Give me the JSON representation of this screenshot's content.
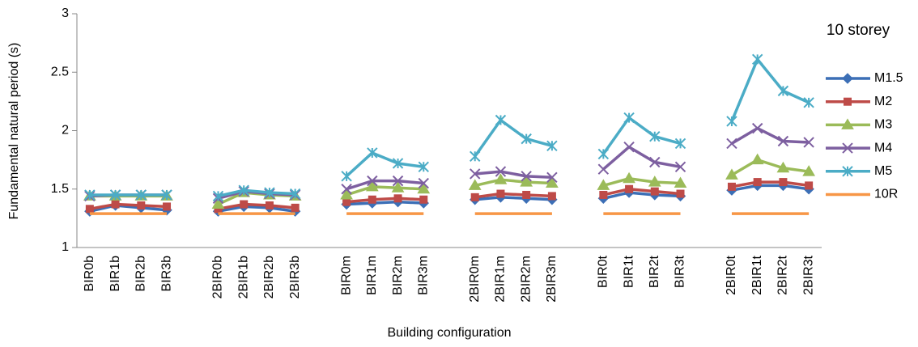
{
  "chart_data": {
    "type": "line",
    "annotation": "10 storey",
    "x_label": "Building configuration",
    "y_label": "Fundamental natural period (s)",
    "categories": [
      "BIR0b",
      "BIR1b",
      "BIR2b",
      "BIR3b",
      null,
      "2BIR0b",
      "2BIR1b",
      "2BIR2b",
      "2BIR3b",
      null,
      "BIR0m",
      "BIR1m",
      "BIR2m",
      "BIR3m",
      null,
      "2BIR0m",
      "2BIR1m",
      "2BIR2m",
      "2BIR3m",
      null,
      "BIR0t",
      "BIR1t",
      "BIR2t",
      "BIR3t",
      null,
      "2BIR0t",
      "2BIR1t",
      "2BIR2t",
      "2BIR3t"
    ],
    "ylim": [
      1,
      3
    ],
    "yticks": [
      1,
      1.5,
      2,
      2.5,
      3
    ],
    "legend": "right",
    "series": [
      {
        "name": "M1.5",
        "color": "#3c6fb6",
        "marker": "diamond",
        "values": [
          1.31,
          1.36,
          1.34,
          1.32,
          null,
          1.31,
          1.35,
          1.34,
          1.31,
          null,
          1.37,
          1.38,
          1.39,
          1.38,
          null,
          1.41,
          1.43,
          1.42,
          1.41,
          null,
          1.42,
          1.47,
          1.45,
          1.44,
          null,
          1.49,
          1.53,
          1.53,
          1.5
        ]
      },
      {
        "name": "M2",
        "color": "#be4b48",
        "marker": "square",
        "values": [
          1.33,
          1.37,
          1.36,
          1.35,
          null,
          1.33,
          1.37,
          1.36,
          1.34,
          null,
          1.39,
          1.41,
          1.42,
          1.41,
          null,
          1.43,
          1.46,
          1.45,
          1.44,
          null,
          1.45,
          1.5,
          1.48,
          1.46,
          null,
          1.52,
          1.56,
          1.56,
          1.53
        ]
      },
      {
        "name": "M3",
        "color": "#9bbb59",
        "marker": "triangle",
        "values": [
          1.44,
          1.44,
          1.44,
          1.44,
          null,
          1.37,
          1.47,
          1.45,
          1.44,
          null,
          1.45,
          1.52,
          1.51,
          1.5,
          null,
          1.53,
          1.58,
          1.56,
          1.55,
          null,
          1.53,
          1.59,
          1.56,
          1.55,
          null,
          1.62,
          1.75,
          1.68,
          1.65
        ]
      },
      {
        "name": "M4",
        "color": "#7d5fa0",
        "marker": "x",
        "values": [
          1.44,
          1.45,
          1.45,
          1.45,
          null,
          1.42,
          1.48,
          1.46,
          1.45,
          null,
          1.5,
          1.57,
          1.57,
          1.55,
          null,
          1.63,
          1.65,
          1.61,
          1.6,
          null,
          1.67,
          1.86,
          1.73,
          1.69,
          null,
          1.89,
          2.02,
          1.91,
          1.9
        ]
      },
      {
        "name": "M5",
        "color": "#4bacc6",
        "marker": "star",
        "values": [
          1.45,
          1.45,
          1.45,
          1.45,
          null,
          1.44,
          1.49,
          1.47,
          1.46,
          null,
          1.61,
          1.81,
          1.72,
          1.69,
          null,
          1.78,
          2.09,
          1.93,
          1.87,
          null,
          1.8,
          2.11,
          1.95,
          1.89,
          null,
          2.08,
          2.61,
          2.34,
          2.24
        ]
      },
      {
        "name": "10R",
        "color": "#f79646",
        "values": [
          1.29,
          1.29,
          1.29,
          1.29,
          null,
          1.29,
          1.29,
          1.29,
          1.29,
          null,
          1.29,
          1.29,
          1.29,
          1.29,
          null,
          1.29,
          1.29,
          1.29,
          1.29,
          null,
          1.29,
          1.29,
          1.29,
          1.29,
          null,
          1.29,
          1.29,
          1.29,
          1.29
        ]
      }
    ]
  }
}
